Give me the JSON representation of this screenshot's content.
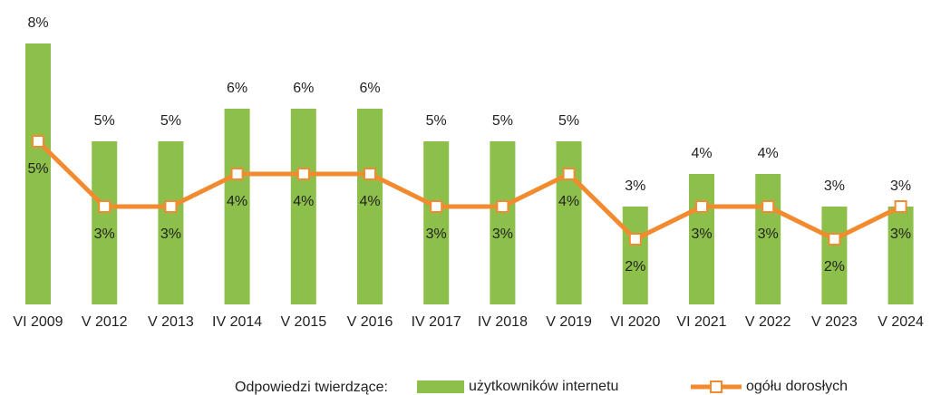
{
  "chart_data": {
    "type": "combo",
    "categories": [
      "VI 2009",
      "V 2012",
      "V 2013",
      "IV 2014",
      "V 2015",
      "V 2016",
      "IV 2017",
      "IV 2018",
      "V 2019",
      "VI 2020",
      "VI 2021",
      "V 2022",
      "V 2023",
      "V 2024"
    ],
    "legend_title": "Odpowiedzi twierdzące:",
    "series": [
      {
        "name": "użytkowników internetu",
        "type": "bar",
        "color": "#8dc04b",
        "values": [
          8,
          5,
          5,
          6,
          6,
          6,
          5,
          5,
          5,
          3,
          4,
          4,
          3,
          3
        ],
        "value_labels": [
          "8%",
          "5%",
          "5%",
          "6%",
          "6%",
          "6%",
          "5%",
          "5%",
          "5%",
          "3%",
          "4%",
          "4%",
          "3%",
          "3%"
        ]
      },
      {
        "name": "ogółu dorosłych",
        "type": "line",
        "color": "#f28b30",
        "values": [
          5,
          3,
          3,
          4,
          4,
          4,
          3,
          3,
          4,
          2,
          3,
          3,
          2,
          3
        ],
        "value_labels": [
          "5%",
          "3%",
          "3%",
          "4%",
          "4%",
          "4%",
          "3%",
          "3%",
          "4%",
          "2%",
          "3%",
          "3%",
          "2%",
          "3%"
        ]
      }
    ]
  }
}
